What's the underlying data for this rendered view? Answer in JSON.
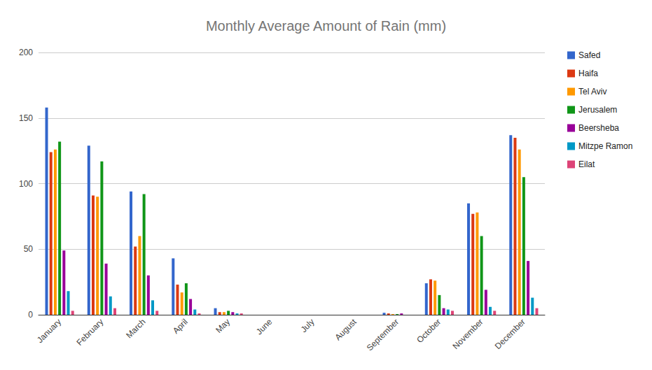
{
  "chart_data": {
    "type": "bar",
    "title": "Monthly Average Amount of Rain (mm)",
    "categories": [
      "January",
      "February",
      "March",
      "April",
      "May",
      "June",
      "July",
      "August",
      "September",
      "October",
      "November",
      "December"
    ],
    "series": [
      {
        "name": "Safed",
        "color": "#3366cc",
        "values": [
          158,
          129,
          94,
          43,
          5,
          0,
          0,
          0,
          1.5,
          24,
          85,
          137
        ]
      },
      {
        "name": "Haifa",
        "color": "#dc3912",
        "values": [
          124,
          91,
          52,
          23,
          2,
          0,
          0,
          0,
          1,
          27,
          77,
          135
        ]
      },
      {
        "name": "Tel Aviv",
        "color": "#ff9900",
        "values": [
          126,
          90,
          60,
          17,
          2,
          0,
          0,
          0,
          0.5,
          26,
          78,
          126
        ]
      },
      {
        "name": "Jerusalem",
        "color": "#109618",
        "values": [
          132,
          117,
          92,
          24,
          3,
          0,
          0,
          0,
          0.5,
          15,
          60,
          105
        ]
      },
      {
        "name": "Beersheba",
        "color": "#990099",
        "values": [
          49,
          39,
          30,
          12,
          2,
          0,
          0,
          0,
          1,
          5,
          19,
          41
        ]
      },
      {
        "name": "Mitzpe Ramon",
        "color": "#0099c6",
        "values": [
          18,
          14,
          11,
          4,
          1,
          0,
          0,
          0,
          0,
          4,
          6,
          13
        ]
      },
      {
        "name": "Eilat",
        "color": "#dd4477",
        "values": [
          3,
          5,
          3,
          1,
          1,
          0,
          0,
          0,
          0,
          3,
          3,
          5
        ]
      }
    ],
    "ylim": [
      0,
      200
    ],
    "yticks": [
      0,
      50,
      100,
      150,
      200
    ],
    "grid": true,
    "legend": "right"
  }
}
